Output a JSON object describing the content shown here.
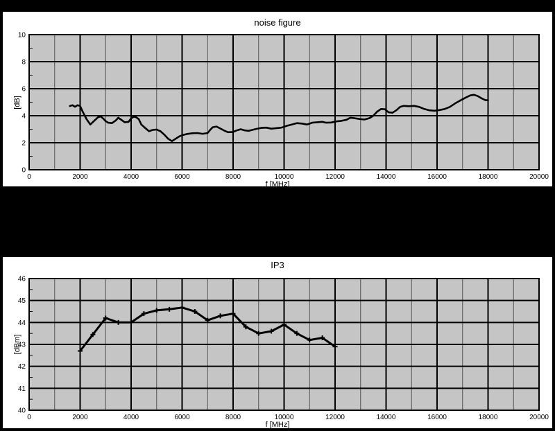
{
  "page": {
    "background": "#000000"
  },
  "colors": {
    "panel_bg": "#ffffff",
    "plot_bg": "#c5c5c5",
    "grid_minor": "#555555",
    "grid_major": "#000000",
    "line": "#000000",
    "text": "#000000"
  },
  "chart_data": [
    {
      "type": "line",
      "title": "noise figure",
      "xlabel": "f [MHz]",
      "ylabel": "[dB]",
      "xlim": [
        0,
        20000
      ],
      "ylim": [
        0,
        10
      ],
      "x_tick_step": 2000,
      "x_minor_step": 1000,
      "y_tick_step": 2,
      "y_minor_step": 1,
      "grid": true,
      "legend": "none",
      "marker": "none",
      "line_width": 2.6,
      "x": [
        1600,
        1700,
        1800,
        1900,
        2000,
        2100,
        2250,
        2400,
        2550,
        2700,
        2800,
        2900,
        3000,
        3100,
        3250,
        3400,
        3500,
        3600,
        3750,
        3900,
        4000,
        4100,
        4200,
        4300,
        4400,
        4550,
        4700,
        4850,
        5000,
        5150,
        5300,
        5450,
        5600,
        5750,
        5900,
        6050,
        6200,
        6400,
        6600,
        6800,
        7000,
        7100,
        7200,
        7350,
        7500,
        7650,
        7800,
        8000,
        8150,
        8300,
        8450,
        8600,
        8750,
        8900,
        9100,
        9300,
        9500,
        9700,
        9900,
        10100,
        10300,
        10500,
        10700,
        10900,
        11100,
        11300,
        11500,
        11650,
        11850,
        12050,
        12250,
        12450,
        12600,
        12750,
        12950,
        13150,
        13350,
        13500,
        13650,
        13800,
        13950,
        14100,
        14250,
        14400,
        14550,
        14700,
        14900,
        15100,
        15300,
        15500,
        15700,
        15900,
        16100,
        16300,
        16500,
        16700,
        16900,
        17100,
        17300,
        17450,
        17600,
        17750,
        17900,
        18000
      ],
      "y": [
        4.72,
        4.78,
        4.66,
        4.78,
        4.72,
        4.3,
        3.75,
        3.35,
        3.62,
        3.88,
        3.95,
        3.8,
        3.6,
        3.48,
        3.45,
        3.65,
        3.85,
        3.72,
        3.52,
        3.55,
        3.8,
        3.93,
        3.88,
        3.75,
        3.35,
        3.1,
        2.85,
        2.95,
        2.98,
        2.85,
        2.6,
        2.3,
        2.12,
        2.3,
        2.48,
        2.58,
        2.65,
        2.7,
        2.72,
        2.66,
        2.72,
        2.95,
        3.15,
        3.2,
        3.05,
        2.9,
        2.78,
        2.8,
        2.92,
        3.0,
        2.92,
        2.88,
        2.95,
        3.02,
        3.1,
        3.12,
        3.04,
        3.08,
        3.12,
        3.25,
        3.35,
        3.45,
        3.42,
        3.35,
        3.48,
        3.52,
        3.55,
        3.48,
        3.5,
        3.58,
        3.62,
        3.7,
        3.85,
        3.82,
        3.76,
        3.72,
        3.82,
        4.0,
        4.3,
        4.5,
        4.48,
        4.25,
        4.22,
        4.4,
        4.65,
        4.73,
        4.7,
        4.73,
        4.65,
        4.5,
        4.4,
        4.37,
        4.42,
        4.5,
        4.65,
        4.9,
        5.12,
        5.32,
        5.5,
        5.55,
        5.45,
        5.28,
        5.15,
        5.15
      ]
    },
    {
      "type": "line",
      "title": "IP3",
      "xlabel": "f [MHz]",
      "ylabel": "[dBm]",
      "xlim": [
        0,
        20000
      ],
      "ylim": [
        40,
        46
      ],
      "x_tick_step": 2000,
      "x_minor_step": 1000,
      "y_tick_step": 1,
      "y_minor_step": 0.5,
      "grid": true,
      "legend": "none",
      "marker": "plus",
      "line_width": 3,
      "x": [
        2000,
        2500,
        3000,
        3500,
        4000,
        4500,
        5000,
        5500,
        6000,
        6500,
        7000,
        7500,
        8000,
        8500,
        9000,
        9500,
        10000,
        10500,
        11000,
        11500,
        12000
      ],
      "y": [
        42.7,
        43.45,
        44.2,
        44.0,
        44.0,
        44.4,
        44.55,
        44.6,
        44.68,
        44.5,
        44.1,
        44.3,
        44.4,
        43.8,
        43.5,
        43.6,
        43.9,
        43.5,
        43.2,
        43.3,
        42.9
      ]
    }
  ]
}
